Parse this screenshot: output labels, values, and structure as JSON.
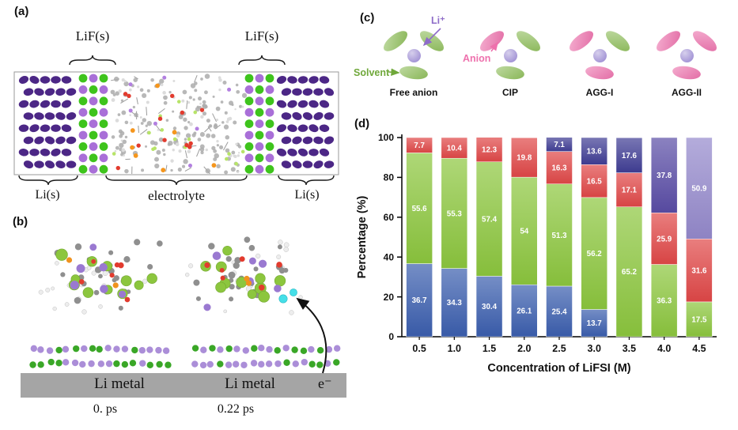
{
  "figure": {
    "panel_a": {
      "label": "(a)",
      "lif_left_label": "LiF(s)",
      "lif_right_label": "LiF(s)",
      "li_left_label": "Li(s)",
      "electrolyte_label": "electrolyte",
      "li_right_label": "Li(s)"
    },
    "panel_b": {
      "label": "(b)",
      "li_metal_left": "Li metal",
      "li_metal_right": "Li metal",
      "electron_label": "e⁻",
      "time_left": "0. ps",
      "time_right": "0.22 ps"
    },
    "panel_c": {
      "label": "(c)",
      "li_ion_label": "Li⁺",
      "solvent_label": "Solvent",
      "anion_label": "Anion",
      "groups": [
        {
          "name": "Free anion",
          "species": [
            "solvent",
            "solvent",
            "solvent"
          ]
        },
        {
          "name": "CIP",
          "species": [
            "anion",
            "solvent",
            "solvent"
          ]
        },
        {
          "name": "AGG-I",
          "species": [
            "anion",
            "solvent",
            "anion"
          ]
        },
        {
          "name": "AGG-II",
          "species": [
            "anion",
            "anion",
            "anion"
          ]
        }
      ],
      "colors": {
        "solvent": "#8fbf5a",
        "anion": "#ee71ad",
        "li_ion": "#a495d6",
        "solvent_text": "#70a83b",
        "anion_text": "#ee71ad",
        "li_text": "#8e6cc8"
      }
    },
    "panel_d": {
      "label": "(d)"
    }
  },
  "chart_data": {
    "type": "bar",
    "stacked": true,
    "title": "",
    "xlabel": "Concentration of LiFSI (M)",
    "ylabel": "Percentage (%)",
    "ylim": [
      0,
      100
    ],
    "yticks": [
      0,
      20,
      40,
      60,
      80,
      100
    ],
    "categories": [
      "0.5",
      "1.0",
      "1.5",
      "2.0",
      "2.5",
      "3.0",
      "3.5",
      "4.0",
      "4.5"
    ],
    "series": [
      {
        "name": "Free anion",
        "color": "#3b5eae",
        "values": [
          36.7,
          34.3,
          30.4,
          26.1,
          25.4,
          13.7,
          0,
          0,
          0
        ]
      },
      {
        "name": "CIP",
        "color": "#8cc63e",
        "values": [
          55.6,
          55.3,
          57.4,
          54,
          51.3,
          56.2,
          65.2,
          36.3,
          17.5
        ]
      },
      {
        "name": "AGG-I",
        "color": "#e04747",
        "values": [
          7.7,
          10.4,
          12.3,
          19.8,
          16.3,
          16.5,
          17.1,
          25.9,
          31.6
        ]
      },
      {
        "name": "AGG-II",
        "color": "#403e95",
        "values": [
          0,
          0,
          0,
          0,
          7.1,
          13.6,
          17.6,
          37.8,
          50.9
        ],
        "point_colors": [
          null,
          null,
          null,
          null,
          null,
          null,
          null,
          "#5a4da6",
          "#9489cc"
        ]
      }
    ]
  }
}
